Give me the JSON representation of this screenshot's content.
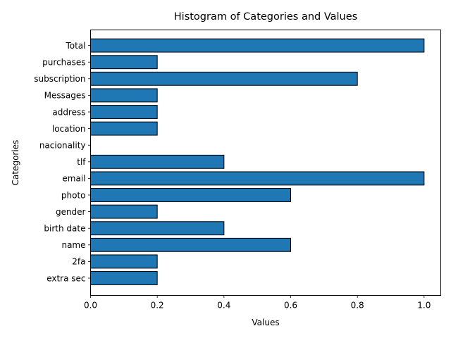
{
  "chart_data": {
    "type": "bar",
    "orientation": "horizontal",
    "title": "Histogram of Categories and Values",
    "xlabel": "Values",
    "ylabel": "Categories",
    "xlim": [
      0,
      1.05
    ],
    "xticks": [
      0.0,
      0.2,
      0.4,
      0.6,
      0.8,
      1.0
    ],
    "xtick_labels": [
      "0.0",
      "0.2",
      "0.4",
      "0.6",
      "0.8",
      "1.0"
    ],
    "categories": [
      "extra sec",
      "2fa",
      "name",
      "birth date",
      "gender",
      "photo",
      "email",
      "tlf",
      "nacionality",
      "location",
      "address",
      "Messages",
      "subscription",
      "purchases",
      "Total"
    ],
    "values": [
      0.2,
      0.2,
      0.6,
      0.4,
      0.2,
      0.6,
      1.0,
      0.4,
      0.0,
      0.2,
      0.2,
      0.2,
      0.8,
      0.2,
      1.0
    ],
    "bar_color": "#1f77b4",
    "edge_color": "#000000",
    "grid": false,
    "legend": "none"
  }
}
